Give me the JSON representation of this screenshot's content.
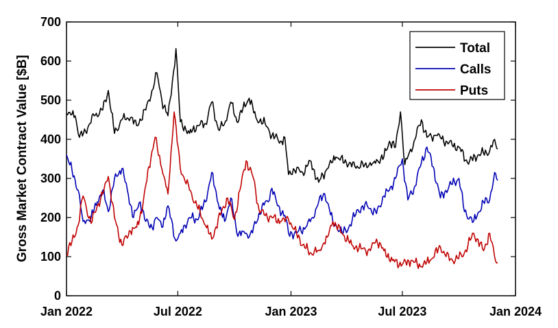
{
  "chart_data": {
    "type": "line",
    "ylabel": "Gross Market Contract Value [$B]",
    "xlabel": "",
    "ylim": [
      0,
      700
    ],
    "yticks": [
      0,
      100,
      200,
      300,
      400,
      500,
      600,
      700
    ],
    "xlim": [
      "2022-01-01",
      "2024-01-01"
    ],
    "xticks": [
      {
        "date": "2022-01-01",
        "label": "Jan 2022"
      },
      {
        "date": "2022-07-01",
        "label": "Jul 2022"
      },
      {
        "date": "2023-01-01",
        "label": "Jan 2023"
      },
      {
        "date": "2023-07-01",
        "label": "Jul 2023"
      },
      {
        "date": "2024-01-01",
        "label": "Jan 2024"
      }
    ],
    "grid": false,
    "legend": "top-right",
    "series": [
      {
        "name": "Total",
        "color": "#000000",
        "points": [
          [
            "2022-01-01",
            465
          ],
          [
            "2022-01-15",
            460
          ],
          [
            "2022-01-22",
            405
          ],
          [
            "2022-02-01",
            420
          ],
          [
            "2022-02-15",
            460
          ],
          [
            "2022-03-01",
            475
          ],
          [
            "2022-03-10",
            525
          ],
          [
            "2022-03-20",
            415
          ],
          [
            "2022-04-01",
            450
          ],
          [
            "2022-04-15",
            455
          ],
          [
            "2022-04-25",
            435
          ],
          [
            "2022-05-10",
            475
          ],
          [
            "2022-05-20",
            525
          ],
          [
            "2022-05-28",
            570
          ],
          [
            "2022-06-05",
            500
          ],
          [
            "2022-06-15",
            460
          ],
          [
            "2022-06-22",
            545
          ],
          [
            "2022-06-28",
            632
          ],
          [
            "2022-07-05",
            445
          ],
          [
            "2022-07-20",
            415
          ],
          [
            "2022-08-01",
            435
          ],
          [
            "2022-08-15",
            440
          ],
          [
            "2022-08-25",
            495
          ],
          [
            "2022-09-05",
            425
          ],
          [
            "2022-09-15",
            440
          ],
          [
            "2022-09-25",
            495
          ],
          [
            "2022-10-05",
            445
          ],
          [
            "2022-10-15",
            480
          ],
          [
            "2022-10-25",
            505
          ],
          [
            "2022-11-05",
            455
          ],
          [
            "2022-11-20",
            440
          ],
          [
            "2022-12-01",
            410
          ],
          [
            "2022-12-15",
            395
          ],
          [
            "2022-12-22",
            405
          ],
          [
            "2022-12-28",
            310
          ],
          [
            "2023-01-05",
            325
          ],
          [
            "2023-01-20",
            315
          ],
          [
            "2023-02-01",
            345
          ],
          [
            "2023-02-15",
            290
          ],
          [
            "2023-03-01",
            325
          ],
          [
            "2023-03-15",
            355
          ],
          [
            "2023-04-01",
            340
          ],
          [
            "2023-04-15",
            330
          ],
          [
            "2023-05-01",
            335
          ],
          [
            "2023-05-15",
            340
          ],
          [
            "2023-06-01",
            355
          ],
          [
            "2023-06-10",
            395
          ],
          [
            "2023-06-20",
            380
          ],
          [
            "2023-06-28",
            470
          ],
          [
            "2023-07-05",
            335
          ],
          [
            "2023-07-20",
            395
          ],
          [
            "2023-08-01",
            450
          ],
          [
            "2023-08-10",
            405
          ],
          [
            "2023-08-25",
            410
          ],
          [
            "2023-09-10",
            395
          ],
          [
            "2023-09-20",
            385
          ],
          [
            "2023-10-01",
            380
          ],
          [
            "2023-10-15",
            340
          ],
          [
            "2023-11-01",
            360
          ],
          [
            "2023-11-20",
            370
          ],
          [
            "2023-11-28",
            400
          ],
          [
            "2023-12-03",
            375
          ]
        ]
      },
      {
        "name": "Calls",
        "color": "#0000b4",
        "points": [
          [
            "2022-01-01",
            360
          ],
          [
            "2022-01-10",
            320
          ],
          [
            "2022-01-20",
            270
          ],
          [
            "2022-01-28",
            190
          ],
          [
            "2022-02-10",
            200
          ],
          [
            "2022-02-20",
            240
          ],
          [
            "2022-03-01",
            270
          ],
          [
            "2022-03-10",
            215
          ],
          [
            "2022-03-20",
            300
          ],
          [
            "2022-04-01",
            325
          ],
          [
            "2022-04-10",
            270
          ],
          [
            "2022-04-20",
            200
          ],
          [
            "2022-05-01",
            240
          ],
          [
            "2022-05-10",
            190
          ],
          [
            "2022-05-20",
            175
          ],
          [
            "2022-05-28",
            200
          ],
          [
            "2022-06-05",
            175
          ],
          [
            "2022-06-15",
            230
          ],
          [
            "2022-06-28",
            140
          ],
          [
            "2022-07-05",
            160
          ],
          [
            "2022-07-20",
            200
          ],
          [
            "2022-08-01",
            195
          ],
          [
            "2022-08-15",
            240
          ],
          [
            "2022-08-25",
            315
          ],
          [
            "2022-09-05",
            235
          ],
          [
            "2022-09-15",
            190
          ],
          [
            "2022-09-25",
            250
          ],
          [
            "2022-10-05",
            160
          ],
          [
            "2022-10-15",
            165
          ],
          [
            "2022-10-25",
            150
          ],
          [
            "2022-11-05",
            185
          ],
          [
            "2022-11-15",
            230
          ],
          [
            "2022-11-25",
            240
          ],
          [
            "2022-12-01",
            275
          ],
          [
            "2022-12-10",
            230
          ],
          [
            "2022-12-22",
            205
          ],
          [
            "2022-12-28",
            160
          ],
          [
            "2023-01-10",
            160
          ],
          [
            "2023-01-25",
            175
          ],
          [
            "2023-02-05",
            200
          ],
          [
            "2023-02-15",
            240
          ],
          [
            "2023-02-25",
            260
          ],
          [
            "2023-03-10",
            190
          ],
          [
            "2023-03-25",
            160
          ],
          [
            "2023-04-05",
            175
          ],
          [
            "2023-04-20",
            220
          ],
          [
            "2023-05-05",
            230
          ],
          [
            "2023-05-20",
            210
          ],
          [
            "2023-06-01",
            255
          ],
          [
            "2023-06-10",
            270
          ],
          [
            "2023-06-20",
            300
          ],
          [
            "2023-07-01",
            350
          ],
          [
            "2023-07-10",
            245
          ],
          [
            "2023-07-20",
            275
          ],
          [
            "2023-08-01",
            340
          ],
          [
            "2023-08-10",
            380
          ],
          [
            "2023-08-20",
            330
          ],
          [
            "2023-09-01",
            250
          ],
          [
            "2023-09-15",
            280
          ],
          [
            "2023-10-01",
            300
          ],
          [
            "2023-10-10",
            215
          ],
          [
            "2023-10-25",
            190
          ],
          [
            "2023-11-10",
            240
          ],
          [
            "2023-11-20",
            245
          ],
          [
            "2023-11-28",
            315
          ],
          [
            "2023-12-03",
            295
          ]
        ]
      },
      {
        "name": "Puts",
        "color": "#c00000",
        "points": [
          [
            "2022-01-01",
            105
          ],
          [
            "2022-01-10",
            140
          ],
          [
            "2022-01-20",
            180
          ],
          [
            "2022-01-28",
            255
          ],
          [
            "2022-02-10",
            185
          ],
          [
            "2022-02-20",
            230
          ],
          [
            "2022-03-01",
            260
          ],
          [
            "2022-03-10",
            305
          ],
          [
            "2022-03-20",
            200
          ],
          [
            "2022-04-01",
            130
          ],
          [
            "2022-04-15",
            165
          ],
          [
            "2022-04-25",
            175
          ],
          [
            "2022-05-05",
            230
          ],
          [
            "2022-05-15",
            330
          ],
          [
            "2022-05-25",
            405
          ],
          [
            "2022-06-05",
            325
          ],
          [
            "2022-06-15",
            260
          ],
          [
            "2022-06-25",
            470
          ],
          [
            "2022-07-05",
            325
          ],
          [
            "2022-07-20",
            270
          ],
          [
            "2022-08-01",
            230
          ],
          [
            "2022-08-15",
            180
          ],
          [
            "2022-08-25",
            145
          ],
          [
            "2022-09-10",
            215
          ],
          [
            "2022-09-20",
            250
          ],
          [
            "2022-10-01",
            195
          ],
          [
            "2022-10-10",
            270
          ],
          [
            "2022-10-20",
            345
          ],
          [
            "2022-11-01",
            300
          ],
          [
            "2022-11-10",
            220
          ],
          [
            "2022-11-20",
            205
          ],
          [
            "2022-12-01",
            200
          ],
          [
            "2022-12-15",
            190
          ],
          [
            "2022-12-28",
            195
          ],
          [
            "2023-01-10",
            160
          ],
          [
            "2023-01-20",
            130
          ],
          [
            "2023-02-01",
            110
          ],
          [
            "2023-02-15",
            115
          ],
          [
            "2023-03-01",
            150
          ],
          [
            "2023-03-10",
            190
          ],
          [
            "2023-03-25",
            160
          ],
          [
            "2023-04-10",
            130
          ],
          [
            "2023-04-25",
            120
          ],
          [
            "2023-05-10",
            115
          ],
          [
            "2023-05-20",
            145
          ],
          [
            "2023-06-01",
            115
          ],
          [
            "2023-06-15",
            90
          ],
          [
            "2023-07-01",
            80
          ],
          [
            "2023-07-15",
            90
          ],
          [
            "2023-08-01",
            75
          ],
          [
            "2023-08-15",
            90
          ],
          [
            "2023-09-01",
            125
          ],
          [
            "2023-09-10",
            100
          ],
          [
            "2023-09-25",
            90
          ],
          [
            "2023-10-10",
            110
          ],
          [
            "2023-10-25",
            160
          ],
          [
            "2023-11-10",
            115
          ],
          [
            "2023-11-20",
            160
          ],
          [
            "2023-11-28",
            100
          ],
          [
            "2023-12-03",
            85
          ]
        ]
      }
    ]
  }
}
